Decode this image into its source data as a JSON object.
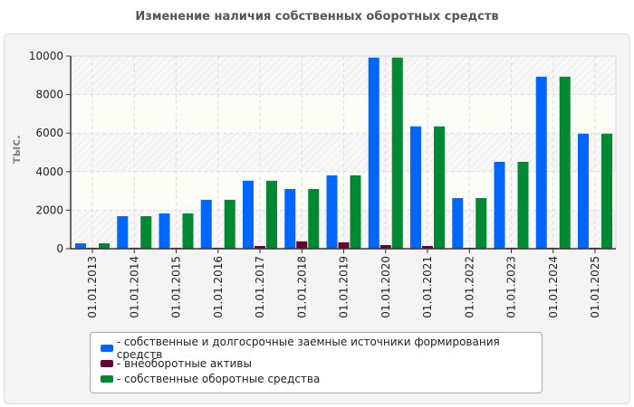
{
  "chart_data": {
    "type": "bar",
    "title": "Изменение наличия собственных оборотных средств",
    "ylabel": "тыс.",
    "xlabel": "",
    "ylim": [
      0,
      10000
    ],
    "yticks": [
      0,
      2000,
      4000,
      6000,
      8000,
      10000
    ],
    "grid": true,
    "legend_position": "bottom",
    "categories": [
      "01.01.2013",
      "01.01.2014",
      "01.01.2015",
      "01.01.2016",
      "01.01.2017",
      "01.01.2018",
      "01.01.2019",
      "01.01.2020",
      "01.01.2021",
      "01.01.2022",
      "01.01.2023",
      "01.01.2024",
      "01.01.2025"
    ],
    "series": [
      {
        "name": "- собственные и долгосрочные заемные источники формирования средств",
        "color": "#0066ff",
        "values": [
          280,
          1690,
          1830,
          2540,
          3530,
          3100,
          3810,
          9920,
          6350,
          2630,
          4510,
          8930,
          5970
        ]
      },
      {
        "name": "- внеоборотные активы",
        "color": "#660033",
        "values": [
          50,
          50,
          50,
          50,
          140,
          380,
          330,
          190,
          140,
          50,
          50,
          50,
          50
        ]
      },
      {
        "name": "- собственные оборотные средства",
        "color": "#008833",
        "values": [
          280,
          1690,
          1830,
          2540,
          3530,
          3100,
          3810,
          9920,
          6350,
          2630,
          4510,
          8930,
          5970
        ]
      }
    ]
  }
}
